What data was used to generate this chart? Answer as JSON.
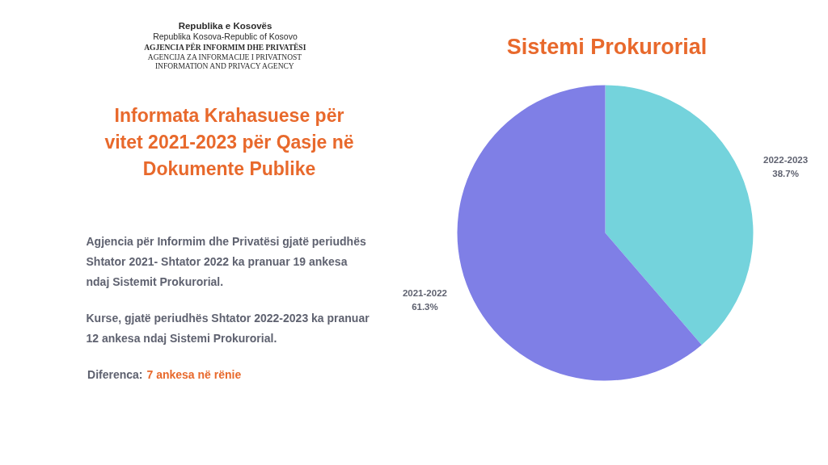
{
  "chart_data": {
    "type": "pie",
    "title": "Sistemi Prokurorial",
    "subtitle": "Informata Krahasuese për vitet 2021-2023 për Qasje në Dokumente Publike",
    "categories": [
      "2022-2023",
      "2021-2022"
    ],
    "values": [
      38.7,
      61.3
    ],
    "colors": [
      "#74d3dc",
      "#7f7fe6"
    ],
    "value_labels": [
      "38.7%",
      "61.3%"
    ],
    "annotations": [
      "Republika e Kosovës",
      "Republika Kosova-Republic of Kosovo",
      "AGJENCIA PËR INFORMIM DHE PRIVATËSI",
      "AGENCIJA ZA INFORMACIJE I PRIVATNOST",
      "INFORMATION AND PRIVACY AGENCY",
      "Agjencia për Informim dhe Privatësi gjatë periudhës Shtator 2021- Shtator 2022 ka pranuar 19 ankesa ndaj Sistemit Prokurorial.",
      "Kurse, gjatë periudhës Shtator 2022-2023 ka pranuar 12 ankesa ndaj Sistemi Prokurorial.",
      "Diferenca:",
      "7 ankesa në rënie"
    ]
  }
}
